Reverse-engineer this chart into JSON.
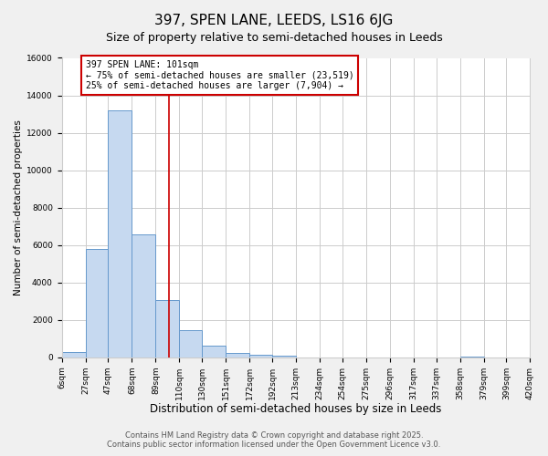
{
  "title": "397, SPEN LANE, LEEDS, LS16 6JG",
  "subtitle": "Size of property relative to semi-detached houses in Leeds",
  "xlabel": "Distribution of semi-detached houses by size in Leeds",
  "ylabel": "Number of semi-detached properties",
  "bar_edges": [
    6,
    27,
    47,
    68,
    89,
    110,
    130,
    151,
    172,
    192,
    213,
    234,
    254,
    275,
    296,
    317,
    337,
    358,
    379,
    399,
    420
  ],
  "bar_heights": [
    300,
    5800,
    13200,
    6550,
    3050,
    1450,
    600,
    230,
    130,
    80,
    0,
    0,
    0,
    0,
    0,
    0,
    0,
    50,
    0,
    0
  ],
  "bar_color": "#c6d9f0",
  "bar_edge_color": "#6699cc",
  "property_size": 101,
  "vline_color": "#cc0000",
  "annotation_title": "397 SPEN LANE: 101sqm",
  "annotation_line1": "← 75% of semi-detached houses are smaller (23,519)",
  "annotation_line2": "25% of semi-detached houses are larger (7,904) →",
  "annotation_box_edge": "#cc0000",
  "ylim": [
    0,
    16000
  ],
  "yticks": [
    0,
    2000,
    4000,
    6000,
    8000,
    10000,
    12000,
    14000,
    16000
  ],
  "tick_labels": [
    "6sqm",
    "27sqm",
    "47sqm",
    "68sqm",
    "89sqm",
    "110sqm",
    "130sqm",
    "151sqm",
    "172sqm",
    "192sqm",
    "213sqm",
    "234sqm",
    "254sqm",
    "275sqm",
    "296sqm",
    "317sqm",
    "337sqm",
    "358sqm",
    "379sqm",
    "399sqm",
    "420sqm"
  ],
  "background_color": "#f0f0f0",
  "plot_bg_color": "#ffffff",
  "footer1": "Contains HM Land Registry data © Crown copyright and database right 2025.",
  "footer2": "Contains public sector information licensed under the Open Government Licence v3.0.",
  "title_fontsize": 11,
  "subtitle_fontsize": 9,
  "xlabel_fontsize": 8.5,
  "ylabel_fontsize": 7.5,
  "tick_fontsize": 6.5,
  "annotation_fontsize": 7,
  "footer_fontsize": 6
}
